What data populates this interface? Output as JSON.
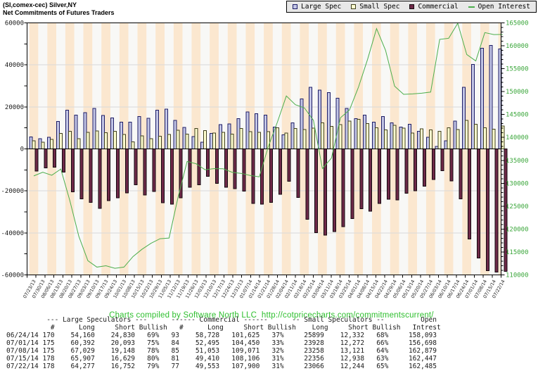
{
  "header": {
    "title_line1": "(SI,comex-cec) Silver,NY",
    "title_line2": "Net Commitments of Futures Traders"
  },
  "legend": {
    "items": [
      {
        "label": "Large Spec",
        "type": "bar",
        "fill": "#c3c6e6",
        "border": "#1c1c66"
      },
      {
        "label": "Small Spec",
        "type": "bar",
        "fill": "#ffffd0",
        "border": "#3d3d1a"
      },
      {
        "label": "Commercial",
        "type": "bar",
        "fill": "#6e2948",
        "border": "#140a10"
      },
      {
        "label": "Open Interest",
        "type": "line",
        "color": "#4cae4c"
      }
    ]
  },
  "footer": {
    "credit": "Charts compiled by Software North LLC  http://cotpricecharts.com/commitmentscurrent/"
  },
  "chart_data": {
    "type": "bar",
    "title": "Net Commitments of Futures Traders",
    "x": [
      "07/23/13",
      "07/30/13",
      "08/06/13",
      "08/13/13",
      "08/20/13",
      "08/27/13",
      "09/03/13",
      "09/10/13",
      "09/17/13",
      "09/24/13",
      "10/01/13",
      "10/08/13",
      "10/15/13",
      "10/22/13",
      "10/29/13",
      "11/05/13",
      "11/12/13",
      "11/19/13",
      "11/26/13",
      "12/03/13",
      "12/10/13",
      "12/17/13",
      "12/24/13",
      "12/31/13",
      "01/07/14",
      "01/14/14",
      "01/21/14",
      "01/28/14",
      "02/04/14",
      "02/11/14",
      "02/18/14",
      "02/25/14",
      "03/04/14",
      "03/11/14",
      "03/18/14",
      "03/25/14",
      "04/01/14",
      "04/08/14",
      "04/15/14",
      "04/22/14",
      "04/29/14",
      "05/06/14",
      "05/13/14",
      "05/20/14",
      "05/27/14",
      "06/03/14",
      "06/10/14",
      "06/17/14",
      "06/24/14",
      "07/01/14",
      "07/08/14",
      "07/15/14",
      "07/22/14"
    ],
    "series": [
      {
        "name": "Large Spec",
        "type": "bar",
        "axis": "left",
        "values": [
          5700,
          4900,
          5450,
          13050,
          18400,
          16100,
          17250,
          19300,
          15900,
          14750,
          12700,
          12700,
          15350,
          14550,
          18400,
          19000,
          13600,
          10200,
          5900,
          3200,
          7400,
          11600,
          11900,
          14400,
          17600,
          16800,
          16100,
          10350,
          6700,
          12400,
          23750,
          29400,
          28000,
          26800,
          24100,
          19200,
          14400,
          16100,
          12700,
          15500,
          12400,
          10350,
          11800,
          8400,
          5600,
          1250,
          3850,
          13200,
          29330,
          40299,
          47881,
          49278,
          47525
        ]
      },
      {
        "name": "Small Spec",
        "type": "bar",
        "axis": "left",
        "values": [
          3850,
          3200,
          4550,
          7400,
          8400,
          4900,
          7950,
          8500,
          7700,
          8300,
          6800,
          3400,
          6250,
          4800,
          6000,
          6800,
          8900,
          7000,
          9650,
          8750,
          7600,
          7950,
          7050,
          9650,
          8200,
          7950,
          8200,
          10100,
          7600,
          9800,
          9300,
          9900,
          12400,
          10700,
          11500,
          13200,
          14100,
          12000,
          10100,
          9000,
          11250,
          9900,
          7600,
          9550,
          9000,
          8400,
          10100,
          9300,
          13567,
          11656,
          10137,
          9418,
          10822
        ]
      },
      {
        "name": "Commercial",
        "type": "bar",
        "axis": "left",
        "values": [
          -10550,
          -9100,
          -8750,
          -11000,
          -20450,
          -23850,
          -25550,
          -28400,
          -24650,
          -23300,
          -21000,
          -17050,
          -21950,
          -20200,
          -25600,
          -26350,
          -23300,
          -18200,
          -17050,
          -13050,
          -16500,
          -18200,
          -19000,
          -20100,
          -25900,
          -26350,
          -25450,
          -21700,
          -15450,
          -23100,
          -33600,
          -39900,
          -41000,
          -39300,
          -37000,
          -33100,
          -28500,
          -29700,
          -25900,
          -24000,
          -24300,
          -21100,
          -20000,
          -17700,
          -14550,
          -10350,
          -15200,
          -23750,
          -42897,
          -51955,
          -58018,
          -58696,
          -58347
        ]
      },
      {
        "name": "Open Interest",
        "type": "line",
        "axis": "right",
        "values": [
          131600,
          132400,
          131750,
          133100,
          126200,
          118400,
          113100,
          111700,
          112000,
          111450,
          111700,
          114000,
          115600,
          116900,
          117900,
          118050,
          127000,
          134750,
          134250,
          132950,
          133200,
          133150,
          132400,
          132150,
          131700,
          131400,
          138000,
          143300,
          149050,
          147150,
          146450,
          143750,
          133200,
          135500,
          144300,
          146000,
          151000,
          157000,
          163750,
          159000,
          151200,
          149400,
          149500,
          149650,
          149900,
          161400,
          161650,
          164900,
          158093,
          156698,
          162879,
          162447,
          162485
        ]
      }
    ],
    "left_axis": {
      "min": -60000,
      "max": 60000,
      "tick_labels": [
        "-60000",
        "-40000",
        "-20000",
        "0",
        "20000",
        "40000",
        "60000"
      ]
    },
    "right_axis": {
      "min": 110000,
      "max": 165000,
      "tick_labels": [
        "110000",
        "115000",
        "120000",
        "125000",
        "130000",
        "135000",
        "140000",
        "145000",
        "150000",
        "155000",
        "160000",
        "165000"
      ]
    },
    "legend_position": "top-right",
    "grid": true,
    "colors": {
      "large_spec_fill": "#c3c6e6",
      "large_spec_border": "#1c1c66",
      "small_spec_fill": "#ffffd0",
      "small_spec_border": "#3d3d1a",
      "commercial_fill": "#6e2948",
      "commercial_border": "#140a10",
      "open_interest_line": "#4cae4c",
      "band_peach": "#fbe7cf",
      "band_white": "#f8f8f6",
      "right_axis_text": "#3aa63a",
      "grid_line": "#d9d9d9"
    }
  },
  "table": {
    "header_line1": "          --- Large Speculators ---      ------ Commercial ------      -- Small Speculators --         Open",
    "header_line2": "           #      Long     Short Bullish   #      Long     Short Bullish    Long     Short Bullish   Intrest",
    "rows": [
      {
        "date": "06/24/14",
        "ls": {
          "n": "170",
          "long": "54,160",
          "short": "24,830",
          "bull": "69%"
        },
        "c": {
          "n": "93",
          "long": "58,728",
          "short": "101,625",
          "bull": "37%"
        },
        "ss": {
          "long": "25899",
          "short": "12,332",
          "bull": "68%"
        },
        "oi": "158,093"
      },
      {
        "date": "07/01/14",
        "ls": {
          "n": "175",
          "long": "60,392",
          "short": "20,093",
          "bull": "75%"
        },
        "c": {
          "n": "84",
          "long": "52,495",
          "short": "104,450",
          "bull": "33%"
        },
        "ss": {
          "long": "23928",
          "short": "12,272",
          "bull": "66%"
        },
        "oi": "156,698"
      },
      {
        "date": "07/08/14",
        "ls": {
          "n": "175",
          "long": "67,029",
          "short": "19,148",
          "bull": "78%"
        },
        "c": {
          "n": "85",
          "long": "51,053",
          "short": "109,071",
          "bull": "32%"
        },
        "ss": {
          "long": "23258",
          "short": "13,121",
          "bull": "64%"
        },
        "oi": "162,879"
      },
      {
        "date": "07/15/14",
        "ls": {
          "n": "178",
          "long": "65,907",
          "short": "16,629",
          "bull": "80%"
        },
        "c": {
          "n": "81",
          "long": "49,410",
          "short": "108,106",
          "bull": "31%"
        },
        "ss": {
          "long": "22356",
          "short": "12,938",
          "bull": "63%"
        },
        "oi": "162,447"
      },
      {
        "date": "07/22/14",
        "ls": {
          "n": "178",
          "long": "64,277",
          "short": "16,752",
          "bull": "79%"
        },
        "c": {
          "n": "77",
          "long": "49,553",
          "short": "107,900",
          "bull": "31%"
        },
        "ss": {
          "long": "23066",
          "short": "12,244",
          "bull": "65%"
        },
        "oi": "162,485"
      }
    ]
  }
}
